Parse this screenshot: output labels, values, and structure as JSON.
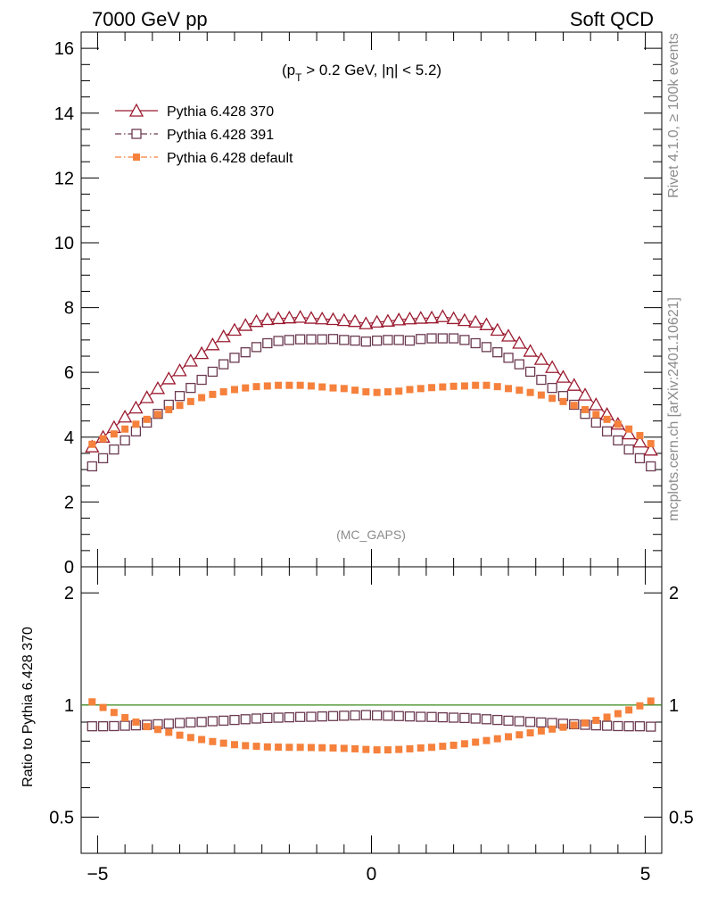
{
  "chart_data": [
    {
      "type": "scatter",
      "header_left": "7000 GeV pp",
      "header_right": "Soft QCD",
      "cut_label": {
        "prefix": "(p",
        "sub": "T",
        "rest": " > 0.2 GeV, |η| < 5.2)"
      },
      "watermark": "(MC_GAPS)",
      "side_label_top": "Rivet 4.1.0, ≥ 100k events",
      "side_label_bottom": "mcplots.cern.ch [arXiv:2401.10621]",
      "xlim": [
        -5.3,
        5.3
      ],
      "ylim": [
        0,
        16.5
      ],
      "yticks": [
        0,
        2,
        4,
        6,
        8,
        10,
        12,
        14,
        16
      ],
      "xlabel": "",
      "ylabel": "",
      "x": [
        -5.1,
        -4.9,
        -4.7,
        -4.5,
        -4.3,
        -4.1,
        -3.9,
        -3.7,
        -3.5,
        -3.3,
        -3.1,
        -2.9,
        -2.7,
        -2.5,
        -2.3,
        -2.1,
        -1.9,
        -1.7,
        -1.5,
        -1.3,
        -1.1,
        -0.9,
        -0.7,
        -0.5,
        -0.3,
        -0.1,
        0.1,
        0.3,
        0.5,
        0.7,
        0.9,
        1.1,
        1.3,
        1.5,
        1.7,
        1.9,
        2.1,
        2.3,
        2.5,
        2.7,
        2.9,
        3.1,
        3.3,
        3.5,
        3.7,
        3.9,
        4.1,
        4.3,
        4.5,
        4.7,
        4.9,
        5.1
      ],
      "series": [
        {
          "name": "Pythia 6.428 370",
          "color": "#9b1b30",
          "marker": "open-triangle",
          "line": "solid",
          "values": [
            3.7,
            4.0,
            4.3,
            4.62,
            4.9,
            5.22,
            5.5,
            5.8,
            6.05,
            6.35,
            6.58,
            6.85,
            7.1,
            7.3,
            7.45,
            7.57,
            7.63,
            7.66,
            7.68,
            7.7,
            7.67,
            7.65,
            7.63,
            7.6,
            7.57,
            7.5,
            7.55,
            7.58,
            7.62,
            7.65,
            7.67,
            7.68,
            7.72,
            7.66,
            7.6,
            7.55,
            7.47,
            7.3,
            7.12,
            6.9,
            6.65,
            6.4,
            6.15,
            5.85,
            5.6,
            5.3,
            5.0,
            4.7,
            4.4,
            4.1,
            3.85,
            3.6
          ]
        },
        {
          "name": "Pythia 6.428 391",
          "color": "#6b3a50",
          "marker": "open-square",
          "line": "dash-dot",
          "values": [
            3.1,
            3.35,
            3.62,
            3.9,
            4.18,
            4.45,
            4.72,
            5.0,
            5.27,
            5.52,
            5.77,
            6.02,
            6.25,
            6.45,
            6.62,
            6.78,
            6.9,
            6.97,
            7.0,
            7.02,
            7.02,
            7.02,
            7.03,
            7.0,
            6.98,
            6.95,
            6.98,
            7.0,
            7.0,
            6.98,
            7.03,
            7.05,
            7.05,
            7.05,
            7.0,
            6.9,
            6.78,
            6.62,
            6.45,
            6.25,
            6.02,
            5.77,
            5.52,
            5.27,
            5.0,
            4.72,
            4.45,
            4.18,
            3.9,
            3.62,
            3.35,
            3.1
          ]
        },
        {
          "name": "Pythia 6.428 default",
          "color": "#f5813c",
          "marker": "filled-square",
          "line": "dash-dot",
          "values": [
            3.78,
            3.95,
            4.1,
            4.25,
            4.4,
            4.55,
            4.7,
            4.85,
            4.98,
            5.1,
            5.22,
            5.32,
            5.4,
            5.47,
            5.52,
            5.56,
            5.58,
            5.6,
            5.6,
            5.6,
            5.58,
            5.55,
            5.52,
            5.5,
            5.45,
            5.4,
            5.38,
            5.4,
            5.42,
            5.47,
            5.5,
            5.53,
            5.55,
            5.57,
            5.58,
            5.6,
            5.6,
            5.56,
            5.5,
            5.45,
            5.38,
            5.3,
            5.2,
            5.1,
            4.98,
            4.85,
            4.7,
            4.55,
            4.4,
            4.25,
            4.05,
            3.8
          ]
        }
      ]
    },
    {
      "type": "scatter",
      "ylabel": "Ratio to Pythia 6.428 370",
      "yscale": "log",
      "ylim": [
        0.4,
        2.35
      ],
      "yticks": [
        0.5,
        1,
        2
      ],
      "ytick_labels": [
        "0.5",
        "1",
        "2"
      ],
      "xlim": [
        -5.3,
        5.3
      ],
      "xticks": [
        -5,
        0,
        5
      ],
      "xtick_labels": [
        "−5",
        "0",
        "5"
      ],
      "reference_line": {
        "value": 1,
        "color": "#3a8a1a"
      },
      "series": [
        {
          "name": "Pythia 6.428 391",
          "color": "#6b3a50",
          "marker": "open-square",
          "values": [
            0.877,
            0.877,
            0.878,
            0.88,
            0.882,
            0.885,
            0.888,
            0.891,
            0.895,
            0.898,
            0.901,
            0.905,
            0.908,
            0.912,
            0.916,
            0.92,
            0.923,
            0.925,
            0.927,
            0.929,
            0.93,
            0.932,
            0.934,
            0.936,
            0.938,
            0.94,
            0.938,
            0.936,
            0.934,
            0.932,
            0.93,
            0.929,
            0.927,
            0.925,
            0.923,
            0.92,
            0.916,
            0.912,
            0.908,
            0.905,
            0.901,
            0.898,
            0.895,
            0.891,
            0.888,
            0.885,
            0.882,
            0.88,
            0.878,
            0.877,
            0.877,
            0.875
          ]
        },
        {
          "name": "Pythia 6.428 default",
          "color": "#f5813c",
          "marker": "filled-square",
          "values": [
            1.02,
            0.985,
            0.955,
            0.925,
            0.9,
            0.875,
            0.86,
            0.845,
            0.83,
            0.818,
            0.808,
            0.798,
            0.79,
            0.783,
            0.778,
            0.775,
            0.772,
            0.771,
            0.77,
            0.77,
            0.769,
            0.768,
            0.767,
            0.765,
            0.763,
            0.76,
            0.758,
            0.758,
            0.76,
            0.763,
            0.767,
            0.77,
            0.775,
            0.78,
            0.787,
            0.795,
            0.803,
            0.812,
            0.822,
            0.832,
            0.842,
            0.852,
            0.862,
            0.872,
            0.883,
            0.895,
            0.91,
            0.928,
            0.948,
            0.97,
            0.995,
            1.025
          ]
        }
      ]
    }
  ]
}
